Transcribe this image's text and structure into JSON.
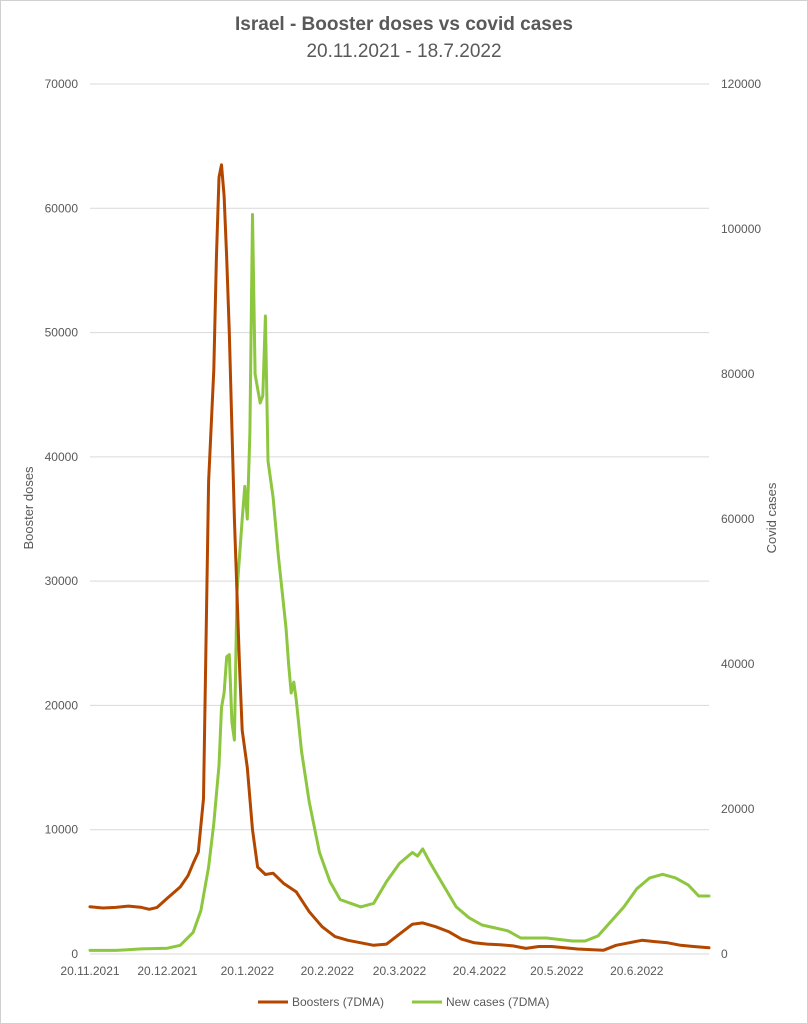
{
  "chart_data": {
    "type": "line",
    "title": "Israel - Booster doses vs covid cases",
    "subtitle": "20.11.2021 - 18.7.2022",
    "ylabel_left": "Booster doses",
    "ylabel_right": "Covid cases",
    "y_left_range": [
      0,
      70000
    ],
    "y_right_range": [
      0,
      120000
    ],
    "y_left_ticks": [
      "0",
      "10000",
      "20000",
      "30000",
      "40000",
      "50000",
      "60000",
      "70000"
    ],
    "y_right_ticks": [
      "0",
      "20000",
      "40000",
      "60000",
      "80000",
      "100000",
      "120000"
    ],
    "x_range": [
      "2021-11-20",
      "2022-07-18"
    ],
    "x_ticks": [
      "20.11.2021",
      "20.12.2021",
      "20.1.2022",
      "20.2.2022",
      "20.3.2022",
      "20.4.2022",
      "20.5.2022",
      "20.6.2022"
    ],
    "grid": true,
    "legend_position": "bottom",
    "series": [
      {
        "name": "Boosters (7DMA)",
        "axis": "left",
        "color": "#b34700",
        "points": [
          [
            "2021-11-20",
            3800
          ],
          [
            "2021-11-25",
            3700
          ],
          [
            "2021-11-30",
            3750
          ],
          [
            "2021-12-05",
            3850
          ],
          [
            "2021-12-10",
            3750
          ],
          [
            "2021-12-13",
            3600
          ],
          [
            "2021-12-16",
            3750
          ],
          [
            "2021-12-20",
            4500
          ],
          [
            "2021-12-25",
            5400
          ],
          [
            "2021-12-28",
            6300
          ],
          [
            "2021-12-30",
            7300
          ],
          [
            "2022-01-01",
            8200
          ],
          [
            "2022-01-03",
            12500
          ],
          [
            "2022-01-05",
            38000
          ],
          [
            "2022-01-07",
            47000
          ],
          [
            "2022-01-08",
            56000
          ],
          [
            "2022-01-09",
            62500
          ],
          [
            "2022-01-10",
            63500
          ],
          [
            "2022-01-11",
            61000
          ],
          [
            "2022-01-12",
            56000
          ],
          [
            "2022-01-13",
            50000
          ],
          [
            "2022-01-15",
            35000
          ],
          [
            "2022-01-17",
            23000
          ],
          [
            "2022-01-18",
            18000
          ],
          [
            "2022-01-20",
            15000
          ],
          [
            "2022-01-22",
            10000
          ],
          [
            "2022-01-24",
            7000
          ],
          [
            "2022-01-27",
            6400
          ],
          [
            "2022-01-30",
            6500
          ],
          [
            "2022-02-03",
            5700
          ],
          [
            "2022-02-08",
            5000
          ],
          [
            "2022-02-13",
            3400
          ],
          [
            "2022-02-18",
            2200
          ],
          [
            "2022-02-23",
            1400
          ],
          [
            "2022-02-28",
            1100
          ],
          [
            "2022-03-05",
            900
          ],
          [
            "2022-03-10",
            700
          ],
          [
            "2022-03-15",
            800
          ],
          [
            "2022-03-20",
            1600
          ],
          [
            "2022-03-25",
            2400
          ],
          [
            "2022-03-29",
            2500
          ],
          [
            "2022-04-03",
            2200
          ],
          [
            "2022-04-08",
            1800
          ],
          [
            "2022-04-13",
            1200
          ],
          [
            "2022-04-18",
            900
          ],
          [
            "2022-04-23",
            800
          ],
          [
            "2022-04-28",
            750
          ],
          [
            "2022-05-03",
            650
          ],
          [
            "2022-05-08",
            450
          ],
          [
            "2022-05-13",
            600
          ],
          [
            "2022-05-18",
            600
          ],
          [
            "2022-05-23",
            500
          ],
          [
            "2022-05-28",
            400
          ],
          [
            "2022-06-02",
            350
          ],
          [
            "2022-06-07",
            300
          ],
          [
            "2022-06-12",
            700
          ],
          [
            "2022-06-17",
            900
          ],
          [
            "2022-06-22",
            1100
          ],
          [
            "2022-06-27",
            1000
          ],
          [
            "2022-07-02",
            900
          ],
          [
            "2022-07-07",
            700
          ],
          [
            "2022-07-12",
            600
          ],
          [
            "2022-07-18",
            500
          ]
        ]
      },
      {
        "name": "New cases (7DMA)",
        "axis": "right",
        "color": "#8dc63f",
        "points": [
          [
            "2021-11-20",
            500
          ],
          [
            "2021-11-30",
            500
          ],
          [
            "2021-12-10",
            700
          ],
          [
            "2021-12-20",
            800
          ],
          [
            "2021-12-25",
            1200
          ],
          [
            "2021-12-30",
            3000
          ],
          [
            "2022-01-02",
            6000
          ],
          [
            "2022-01-05",
            12000
          ],
          [
            "2022-01-07",
            18000
          ],
          [
            "2022-01-09",
            26000
          ],
          [
            "2022-01-10",
            34000
          ],
          [
            "2022-01-11",
            36000
          ],
          [
            "2022-01-12",
            41000
          ],
          [
            "2022-01-13",
            41300
          ],
          [
            "2022-01-14",
            32000
          ],
          [
            "2022-01-15",
            29500
          ],
          [
            "2022-01-16",
            50000
          ],
          [
            "2022-01-17",
            55000
          ],
          [
            "2022-01-18",
            60000
          ],
          [
            "2022-01-19",
            64500
          ],
          [
            "2022-01-20",
            60000
          ],
          [
            "2022-01-21",
            72000
          ],
          [
            "2022-01-22",
            102000
          ],
          [
            "2022-01-23",
            80000
          ],
          [
            "2022-01-24",
            78000
          ],
          [
            "2022-01-25",
            76000
          ],
          [
            "2022-01-26",
            77000
          ],
          [
            "2022-01-27",
            88000
          ],
          [
            "2022-01-28",
            68000
          ],
          [
            "2022-01-30",
            63000
          ],
          [
            "2022-02-01",
            55000
          ],
          [
            "2022-02-04",
            45000
          ],
          [
            "2022-02-05",
            40000
          ],
          [
            "2022-02-06",
            36000
          ],
          [
            "2022-02-07",
            37500
          ],
          [
            "2022-02-08",
            35000
          ],
          [
            "2022-02-10",
            28000
          ],
          [
            "2022-02-13",
            21000
          ],
          [
            "2022-02-17",
            14000
          ],
          [
            "2022-02-21",
            10000
          ],
          [
            "2022-02-25",
            7500
          ],
          [
            "2022-03-01",
            7000
          ],
          [
            "2022-03-05",
            6500
          ],
          [
            "2022-03-10",
            7000
          ],
          [
            "2022-03-15",
            10000
          ],
          [
            "2022-03-20",
            12500
          ],
          [
            "2022-03-25",
            14000
          ],
          [
            "2022-03-27",
            13500
          ],
          [
            "2022-03-29",
            14500
          ],
          [
            "2022-04-01",
            12500
          ],
          [
            "2022-04-06",
            9500
          ],
          [
            "2022-04-11",
            6500
          ],
          [
            "2022-04-16",
            5000
          ],
          [
            "2022-04-21",
            4000
          ],
          [
            "2022-04-26",
            3600
          ],
          [
            "2022-05-01",
            3200
          ],
          [
            "2022-05-06",
            2200
          ],
          [
            "2022-05-11",
            2200
          ],
          [
            "2022-05-16",
            2200
          ],
          [
            "2022-05-21",
            2000
          ],
          [
            "2022-05-26",
            1800
          ],
          [
            "2022-05-31",
            1800
          ],
          [
            "2022-06-05",
            2500
          ],
          [
            "2022-06-10",
            4500
          ],
          [
            "2022-06-15",
            6500
          ],
          [
            "2022-06-20",
            9000
          ],
          [
            "2022-06-25",
            10500
          ],
          [
            "2022-06-30",
            11000
          ],
          [
            "2022-07-05",
            10500
          ],
          [
            "2022-07-10",
            9500
          ],
          [
            "2022-07-14",
            8000
          ],
          [
            "2022-07-18",
            8000
          ]
        ]
      }
    ]
  }
}
